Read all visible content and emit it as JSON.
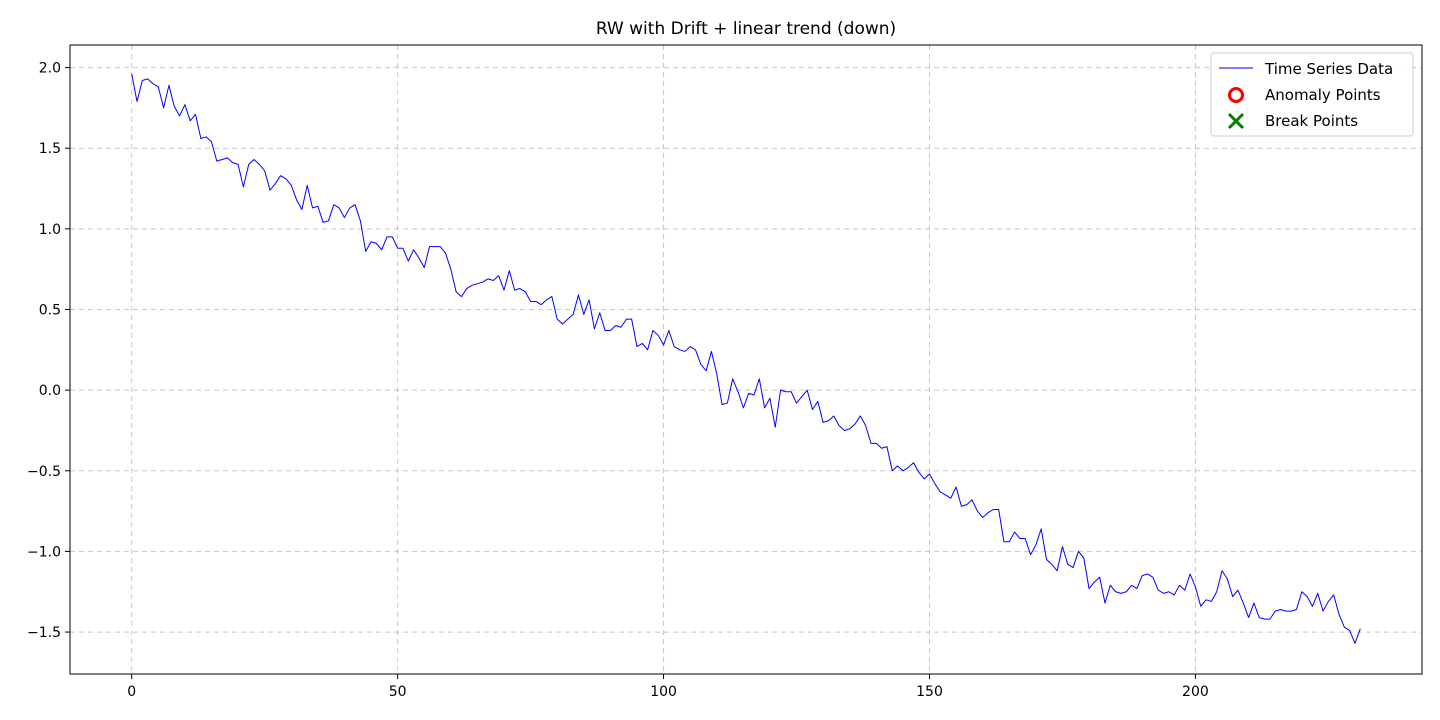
{
  "chart_data": {
    "type": "line",
    "title": "RW with Drift + linear trend (down)",
    "xlabel": "",
    "ylabel": "",
    "xlim": [
      -11.6,
      242.6
    ],
    "ylim": [
      -1.76,
      2.14
    ],
    "x_ticks": [
      0,
      50,
      100,
      150,
      200
    ],
    "y_ticks": [
      2.0,
      1.5,
      1.0,
      0.5,
      0.0,
      -0.5,
      -1.0,
      -1.5
    ],
    "y_tick_labels": [
      "2.0",
      "1.5",
      "1.0",
      "0.5",
      "0.0",
      "−0.5",
      "−1.0",
      "−1.5"
    ],
    "grid": true,
    "legend_position": "top-right",
    "legend": [
      {
        "label": "Time Series Data",
        "marker": "line",
        "color": "#0000ff"
      },
      {
        "label": "Anomaly Points",
        "marker": "circle",
        "color": "#ff0000"
      },
      {
        "label": "Break Points",
        "marker": "x",
        "color": "#008000"
      }
    ],
    "series": [
      {
        "name": "Time Series Data",
        "color": "#0000ff",
        "x_start": 0,
        "x_step": 1,
        "values": [
          1.96,
          1.79,
          1.92,
          1.93,
          1.9,
          1.88,
          1.75,
          1.89,
          1.76,
          1.7,
          1.77,
          1.67,
          1.71,
          1.56,
          1.57,
          1.54,
          1.42,
          1.43,
          1.44,
          1.41,
          1.4,
          1.26,
          1.4,
          1.43,
          1.4,
          1.36,
          1.24,
          1.28,
          1.33,
          1.31,
          1.27,
          1.18,
          1.12,
          1.27,
          1.13,
          1.14,
          1.04,
          1.05,
          1.15,
          1.13,
          1.07,
          1.13,
          1.15,
          1.05,
          0.86,
          0.92,
          0.91,
          0.87,
          0.95,
          0.95,
          0.88,
          0.88,
          0.8,
          0.87,
          0.82,
          0.76,
          0.89,
          0.89,
          0.89,
          0.85,
          0.75,
          0.61,
          0.58,
          0.63,
          0.65,
          0.66,
          0.67,
          0.69,
          0.68,
          0.71,
          0.62,
          0.74,
          0.62,
          0.63,
          0.61,
          0.55,
          0.55,
          0.53,
          0.56,
          0.58,
          0.44,
          0.41,
          0.44,
          0.47,
          0.59,
          0.47,
          0.56,
          0.38,
          0.48,
          0.37,
          0.37,
          0.4,
          0.39,
          0.44,
          0.44,
          0.27,
          0.29,
          0.25,
          0.37,
          0.34,
          0.28,
          0.37,
          0.27,
          0.25,
          0.24,
          0.27,
          0.25,
          0.16,
          0.12,
          0.24,
          0.1,
          -0.09,
          -0.08,
          0.07,
          -0.01,
          -0.11,
          -0.02,
          -0.03,
          0.07,
          -0.11,
          -0.05,
          -0.23,
          0.0,
          -0.01,
          -0.01,
          -0.08,
          -0.04,
          0.0,
          -0.12,
          -0.07,
          -0.2,
          -0.19,
          -0.16,
          -0.22,
          -0.25,
          -0.24,
          -0.21,
          -0.16,
          -0.22,
          -0.33,
          -0.33,
          -0.36,
          -0.35,
          -0.5,
          -0.47,
          -0.5,
          -0.48,
          -0.45,
          -0.51,
          -0.55,
          -0.52,
          -0.58,
          -0.63,
          -0.65,
          -0.67,
          -0.6,
          -0.72,
          -0.71,
          -0.68,
          -0.75,
          -0.79,
          -0.76,
          -0.74,
          -0.74,
          -0.94,
          -0.94,
          -0.88,
          -0.92,
          -0.92,
          -1.02,
          -0.96,
          -0.86,
          -1.05,
          -1.08,
          -1.12,
          -0.97,
          -1.08,
          -1.1,
          -1.0,
          -1.04,
          -1.23,
          -1.19,
          -1.16,
          -1.32,
          -1.21,
          -1.25,
          -1.26,
          -1.25,
          -1.21,
          -1.23,
          -1.15,
          -1.14,
          -1.16,
          -1.24,
          -1.26,
          -1.25,
          -1.27,
          -1.21,
          -1.24,
          -1.14,
          -1.22,
          -1.34,
          -1.3,
          -1.31,
          -1.25,
          -1.12,
          -1.17,
          -1.28,
          -1.24,
          -1.32,
          -1.41,
          -1.32,
          -1.41,
          -1.42,
          -1.42,
          -1.37,
          -1.36,
          -1.37,
          -1.37,
          -1.36,
          -1.25,
          -1.28,
          -1.34,
          -1.26,
          -1.37,
          -1.31,
          -1.27,
          -1.39,
          -1.47,
          -1.49,
          -1.57,
          -1.48
        ]
      }
    ]
  }
}
